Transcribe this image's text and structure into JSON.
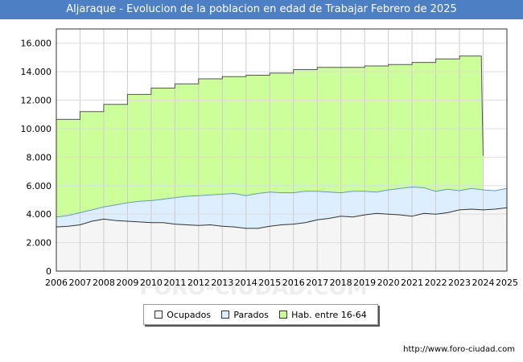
{
  "chart_data": {
    "type": "area",
    "title": "Aljaraque - Evolucion de la poblacion en edad de Trabajar Febrero de 2025",
    "xlabel": "",
    "ylabel": "",
    "x_ticks": [
      "2006",
      "2007",
      "2008",
      "2009",
      "2010",
      "2011",
      "2012",
      "2013",
      "2014",
      "2015",
      "2016",
      "2017",
      "2018",
      "2019",
      "2020",
      "2021",
      "2022",
      "2023",
      "2024",
      "2025"
    ],
    "xlim": [
      2006,
      2025
    ],
    "ylim": [
      0,
      17000
    ],
    "y_ticks": [
      0,
      2000,
      4000,
      6000,
      8000,
      10000,
      12000,
      14000,
      16000
    ],
    "y_tick_labels": [
      "0",
      "2.000",
      "4.000",
      "6.000",
      "8.000",
      "10.000",
      "12.000",
      "14.000",
      "16.000"
    ],
    "grid": true,
    "watermark": "FORO-CIUDAD.COM",
    "series": [
      {
        "name": "Hab. entre 16-64",
        "color": "#ccff99",
        "line_color": "#555555",
        "x": [
          2006,
          2007,
          2007,
          2008,
          2008,
          2009,
          2009,
          2010,
          2010,
          2011,
          2011,
          2012,
          2012,
          2013,
          2013,
          2014,
          2014,
          2015,
          2015,
          2016,
          2016,
          2017,
          2017,
          2018,
          2018,
          2019,
          2019,
          2020,
          2020,
          2021,
          2021,
          2022,
          2022,
          2023,
          2023,
          2023.92,
          2023.95,
          2024
        ],
        "values": [
          10650,
          10650,
          11200,
          11200,
          11700,
          11700,
          12400,
          12400,
          12850,
          12850,
          13150,
          13150,
          13500,
          13500,
          13650,
          13650,
          13750,
          13750,
          13900,
          13900,
          14150,
          14150,
          14300,
          14300,
          14300,
          14300,
          14400,
          14400,
          14500,
          14500,
          14650,
          14650,
          14900,
          14900,
          15100,
          15100,
          12000,
          8100
        ]
      },
      {
        "name": "Parados",
        "color": "#ddeeff",
        "line_color": "#6699cc",
        "x": [
          2006,
          2006.5,
          2007,
          2007.5,
          2008,
          2008.5,
          2009,
          2009.5,
          2010,
          2010.5,
          2011,
          2011.5,
          2012,
          2012.5,
          2013,
          2013.5,
          2014,
          2014.5,
          2015,
          2015.5,
          2016,
          2016.5,
          2017,
          2017.5,
          2018,
          2018.5,
          2019,
          2019.5,
          2020,
          2020.5,
          2021,
          2021.5,
          2022,
          2022.5,
          2023,
          2023.5,
          2024,
          2024.5,
          2025
        ],
        "values": [
          3800,
          3900,
          4100,
          4300,
          4500,
          4650,
          4800,
          4900,
          4950,
          5050,
          5150,
          5250,
          5300,
          5350,
          5400,
          5450,
          5300,
          5450,
          5550,
          5500,
          5500,
          5600,
          5600,
          5550,
          5500,
          5600,
          5600,
          5550,
          5700,
          5800,
          5900,
          5850,
          5600,
          5750,
          5650,
          5800,
          5700,
          5650,
          5800
        ]
      },
      {
        "name": "Ocupados",
        "color": "#f5f5f5",
        "line_color": "#333333",
        "x": [
          2006,
          2006.5,
          2007,
          2007.5,
          2008,
          2008.5,
          2009,
          2009.5,
          2010,
          2010.5,
          2011,
          2011.5,
          2012,
          2012.5,
          2013,
          2013.5,
          2014,
          2014.5,
          2015,
          2015.5,
          2016,
          2016.5,
          2017,
          2017.5,
          2018,
          2018.5,
          2019,
          2019.5,
          2020,
          2020.5,
          2021,
          2021.5,
          2022,
          2022.5,
          2023,
          2023.5,
          2024,
          2024.5,
          2025
        ],
        "values": [
          3100,
          3150,
          3250,
          3500,
          3650,
          3550,
          3500,
          3450,
          3400,
          3400,
          3300,
          3250,
          3200,
          3250,
          3150,
          3100,
          3000,
          3000,
          3150,
          3250,
          3300,
          3400,
          3600,
          3700,
          3850,
          3800,
          3950,
          4050,
          4000,
          3950,
          3850,
          4050,
          4000,
          4100,
          4300,
          4350,
          4300,
          4350,
          4450
        ]
      }
    ],
    "legend": [
      "Ocupados",
      "Parados",
      "Hab. entre 16-64"
    ],
    "legend_position": "bottom-center",
    "source": "http://www.foro-ciudad.com"
  }
}
